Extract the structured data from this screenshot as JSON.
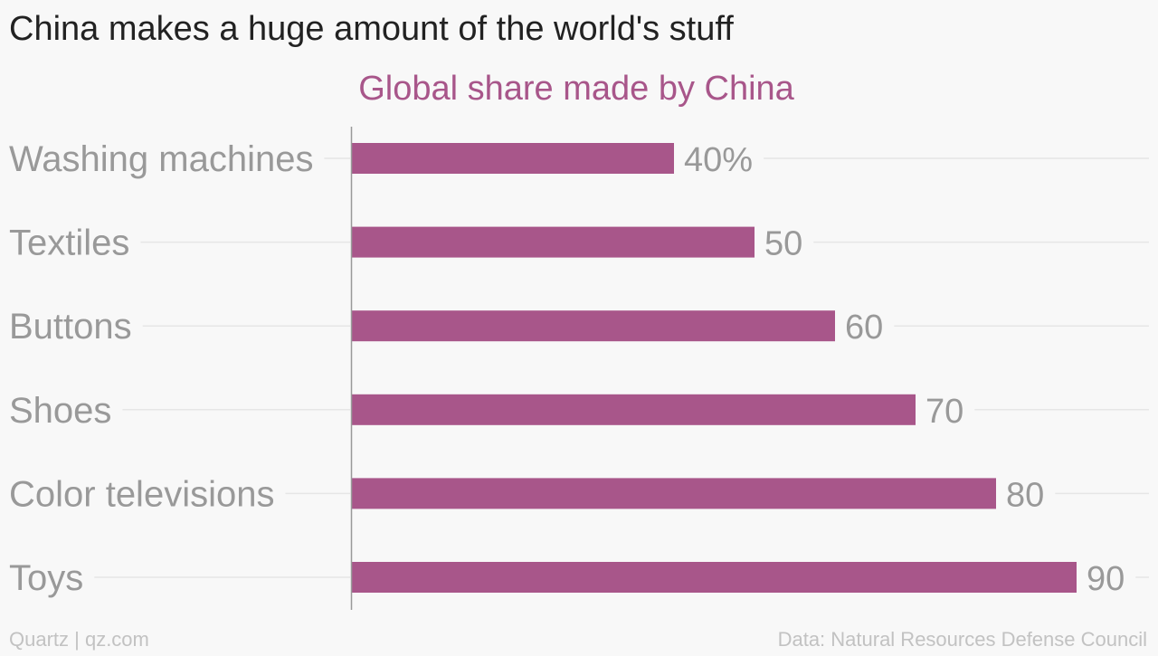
{
  "colors": {
    "background": "#f8f8f8",
    "title": "#222222",
    "subtitle": "#a8568a",
    "bar": "#a8568a",
    "label": "#999999",
    "grid": "#e6e6e6",
    "axis": "#999999",
    "footer": "#c2c2c2"
  },
  "footer": {
    "left": "Quartz | qz.com",
    "right": "Data: Natural Resources Defense Council"
  },
  "chart_data": {
    "type": "bar",
    "orientation": "horizontal",
    "title": "China makes a huge amount of the world's stuff",
    "subtitle": "Global share made by China",
    "categories": [
      "Washing machines",
      "Textiles",
      "Buttons",
      "Shoes",
      "Color televisions",
      "Toys"
    ],
    "values": [
      40,
      50,
      60,
      70,
      80,
      90
    ],
    "value_labels": [
      "40%",
      "50",
      "60",
      "70",
      "80",
      "90"
    ],
    "xlim": [
      0,
      100
    ],
    "grid": true,
    "legend": "none"
  }
}
